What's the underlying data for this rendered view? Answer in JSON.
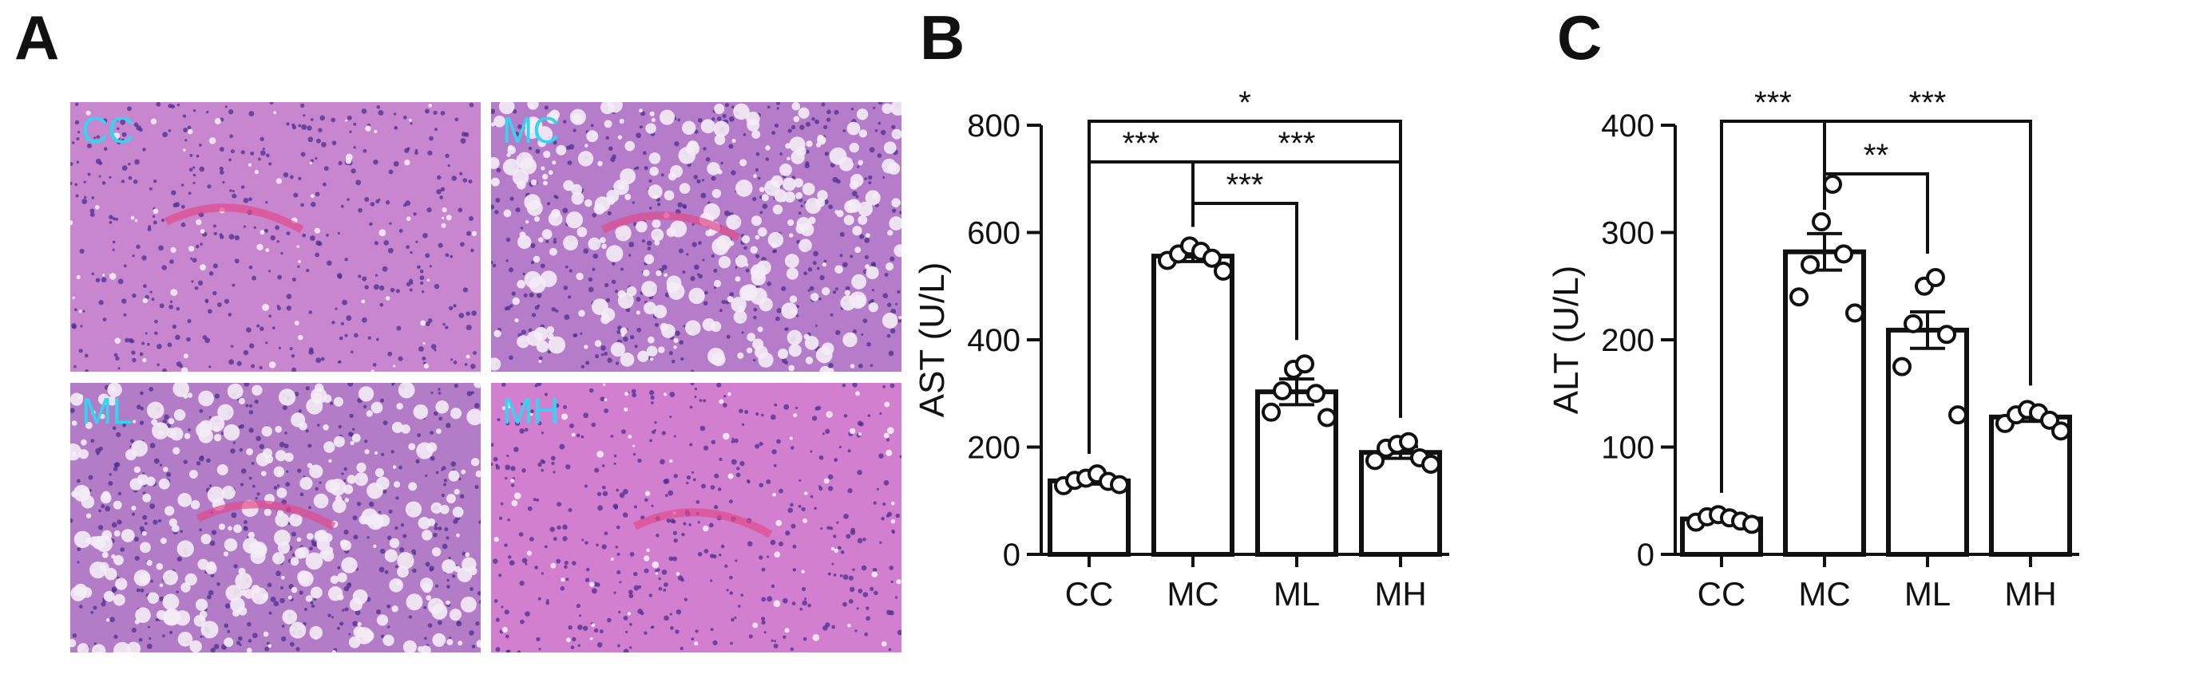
{
  "panels": {
    "a": "A",
    "b": "B",
    "c": "C"
  },
  "histology": [
    {
      "label": "CC",
      "base": "#c886cf",
      "vacuoles": "few"
    },
    {
      "label": "MC",
      "base": "#b57dc9",
      "vacuoles": "many"
    },
    {
      "label": "ML",
      "base": "#b27cc6",
      "vacuoles": "many"
    },
    {
      "label": "MH",
      "base": "#d27fcf",
      "vacuoles": "few"
    }
  ],
  "chart_data": [
    {
      "type": "bar",
      "panel": "B",
      "ylabel": "AST (U/L)",
      "categories": [
        "CC",
        "MC",
        "ML",
        "MH"
      ],
      "values": [
        137,
        556,
        303,
        190
      ],
      "sem": [
        6,
        10,
        24,
        11
      ],
      "points": [
        [
          128,
          138,
          142,
          150,
          136,
          130
        ],
        [
          548,
          560,
          575,
          565,
          552,
          528
        ],
        [
          265,
          305,
          345,
          355,
          300,
          255
        ],
        [
          175,
          198,
          205,
          210,
          180,
          168
        ]
      ],
      "ylim": [
        0,
        800
      ],
      "yticks": [
        0,
        200,
        400,
        600,
        800
      ],
      "significance": [
        {
          "from": "CC",
          "to": "MH",
          "label": "*"
        },
        {
          "from": "CC",
          "to": "MC",
          "label": "***"
        },
        {
          "from": "MC",
          "to": "MH",
          "label": "***"
        },
        {
          "from": "MC",
          "to": "ML",
          "label": "***"
        }
      ]
    },
    {
      "type": "bar",
      "panel": "C",
      "ylabel": "ALT (U/L)",
      "categories": [
        "CC",
        "MC",
        "ML",
        "MH"
      ],
      "values": [
        33,
        282,
        209,
        128
      ],
      "sem": [
        2,
        17,
        17,
        4
      ],
      "points": [
        [
          30,
          35,
          37,
          34,
          31,
          28
        ],
        [
          240,
          270,
          310,
          345,
          280,
          225
        ],
        [
          175,
          215,
          250,
          258,
          205,
          130
        ],
        [
          122,
          130,
          135,
          132,
          125,
          115
        ]
      ],
      "ylim": [
        0,
        400
      ],
      "yticks": [
        0,
        100,
        200,
        300,
        400
      ],
      "significance": [
        {
          "from": "CC",
          "to": "MC",
          "label": "***"
        },
        {
          "from": "MC",
          "to": "MH",
          "label": "***"
        },
        {
          "from": "MC",
          "to": "ML",
          "label": "**"
        }
      ]
    }
  ]
}
